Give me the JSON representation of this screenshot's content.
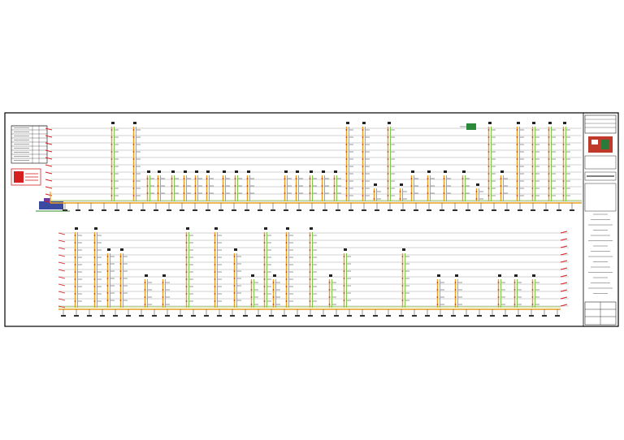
{
  "drawing": {
    "colors": {
      "frame": "#000000",
      "floor_line": "#7a7a7a",
      "riser": "#e8a020",
      "riser_alt": "#6dc03a",
      "header": "#e8a020",
      "header_alt": "#8ac83a",
      "equipment": "#c0392b",
      "panel": "#d62020"
    },
    "title_block": {
      "main_title": "",
      "project": "",
      "sheet_no": ""
    },
    "upper_system": {
      "tall_risers": [
        139,
        166,
        428,
        448,
        479,
        603,
        638,
        657,
        677,
        695
      ],
      "mid_risers": [
        183,
        196,
        213,
        228,
        242,
        256,
        276,
        291,
        306,
        352,
        366,
        383,
        398,
        413,
        508,
        528,
        548,
        571,
        618
      ],
      "short_risers": [
        462,
        494,
        588
      ]
    },
    "lower_system": {
      "tall_risers": [
        94,
        118,
        231,
        266,
        327,
        354,
        383
      ],
      "mid_risers": [
        134,
        150,
        290,
        425,
        497
      ],
      "short_risers": [
        180,
        202,
        311,
        338,
        407,
        540,
        562,
        615,
        635,
        657
      ]
    }
  }
}
